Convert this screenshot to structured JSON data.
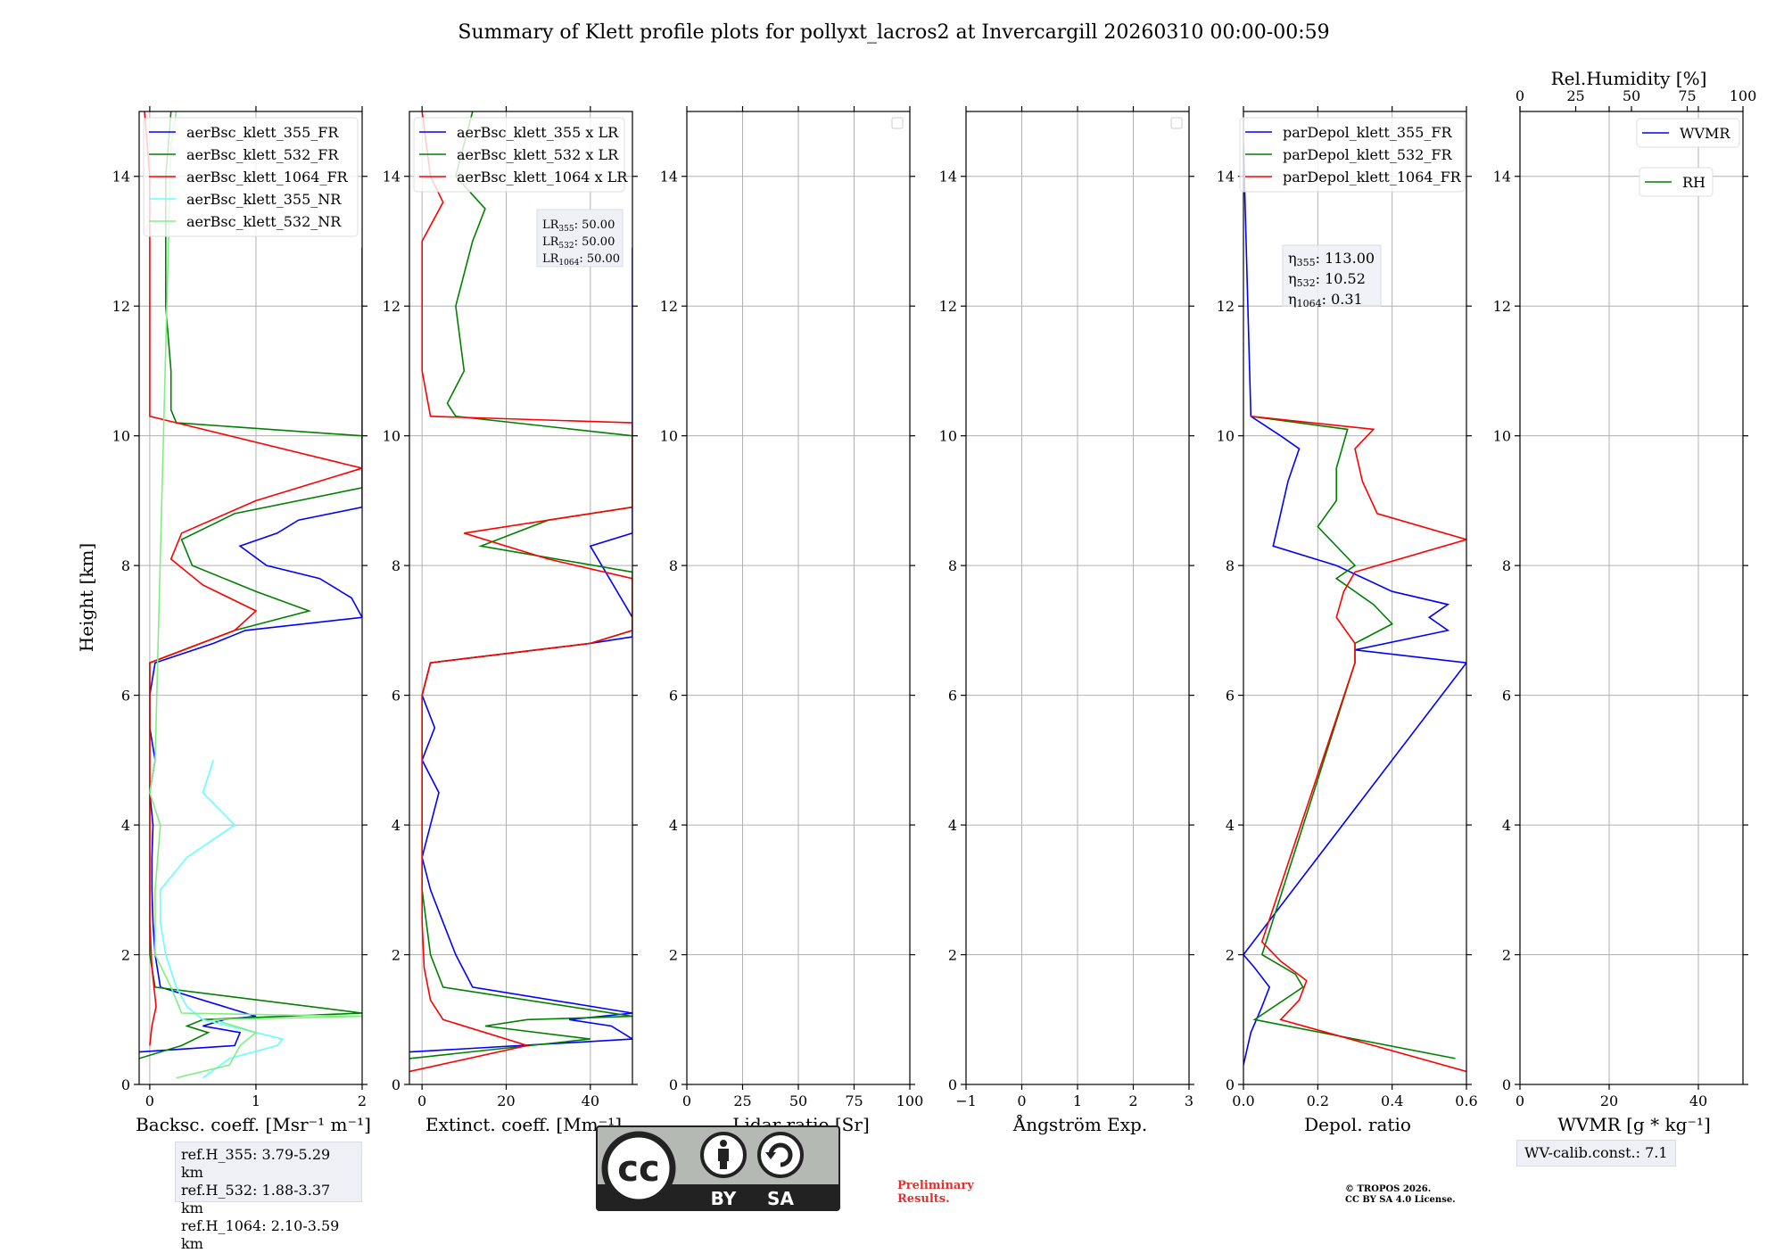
{
  "title": "Summary of Klett profile plots for pollyxt_lacros2 at Invercargill 20260310 00:00-00:59",
  "ylabel": "Height [km]",
  "colors": {
    "blue": "#0000ff",
    "green": "#008000",
    "red": "#ff0000",
    "cyan": "#66ffff",
    "lightgreen": "#80ee80"
  },
  "chart_data": [
    {
      "id": "bsc",
      "type": "line",
      "xlabel": "Backsc. coeff. [Msr⁻¹ m⁻¹]",
      "xlim": [
        -0.1,
        2
      ],
      "ylim": [
        0,
        15
      ],
      "xticks": [
        "0",
        "1",
        "2"
      ],
      "xtick_values": [
        0,
        1,
        2
      ],
      "yticks": [
        "0",
        "2",
        "4",
        "6",
        "8",
        "10",
        "12",
        "14"
      ],
      "legend": [
        "aerBsc_klett_355_FR",
        "aerBsc_klett_532_FR",
        "aerBsc_klett_1064_FR",
        "aerBsc_klett_355_NR",
        "aerBsc_klett_532_NR"
      ],
      "series": [
        {
          "name": "aerBsc_klett_355_FR",
          "color": "blue",
          "y": [
            0.5,
            0.6,
            0.8,
            0.9,
            1.0,
            1.05,
            1.1,
            1.5,
            2.0,
            2.5,
            3.0,
            3.5,
            4.0,
            4.5,
            5.0,
            5.5,
            6.0,
            6.5,
            6.8,
            7.0,
            7.2,
            7.5,
            7.8,
            8.0,
            8.3,
            8.5,
            8.7,
            8.9,
            12.9
          ],
          "x": [
            -0.1,
            0.8,
            0.85,
            0.5,
            0.7,
            1.0,
            0.9,
            0.1,
            0.05,
            0.03,
            0.02,
            0.02,
            0.03,
            0.0,
            0.05,
            0.0,
            0.0,
            0.05,
            0.6,
            0.9,
            2.0,
            1.9,
            1.6,
            1.1,
            0.85,
            1.2,
            1.4,
            2.0,
            2.0
          ]
        },
        {
          "name": "aerBsc_klett_532_FR",
          "color": "green",
          "y": [
            0.4,
            0.6,
            0.8,
            0.9,
            1.0,
            1.1,
            1.5,
            2.0,
            3.0,
            4.0,
            5.0,
            6.0,
            6.5,
            7.0,
            7.3,
            7.6,
            8.0,
            8.4,
            8.8,
            9.2,
            10.0,
            10.2,
            10.4,
            11.0,
            12.0,
            13.0,
            14.0,
            15.0
          ],
          "x": [
            -0.1,
            0.3,
            0.55,
            0.35,
            0.5,
            2.0,
            0.05,
            0.0,
            0.0,
            0.0,
            0.0,
            0.0,
            0.0,
            0.8,
            1.5,
            1.0,
            0.4,
            0.3,
            0.8,
            2.0,
            2.0,
            0.25,
            0.2,
            0.2,
            0.15,
            0.15,
            0.15,
            0.2
          ]
        },
        {
          "name": "aerBsc_klett_1064_FR",
          "color": "red",
          "y": [
            0.6,
            0.9,
            1.2,
            1.8,
            2.5,
            3.5,
            5.0,
            6.5,
            7.0,
            7.3,
            7.7,
            8.1,
            8.5,
            9.0,
            9.5,
            10.3,
            11.0,
            12.0,
            13.0,
            14.0,
            15.0
          ],
          "x": [
            0.0,
            0.02,
            0.06,
            0.02,
            0.0,
            0.0,
            0.0,
            0.0,
            0.8,
            1.0,
            0.5,
            0.2,
            0.3,
            1.0,
            2.0,
            0.0,
            0.0,
            0.0,
            0.0,
            0.0,
            -0.05
          ]
        },
        {
          "name": "aerBsc_klett_355_NR",
          "color": "cyan",
          "y": [
            0.1,
            0.4,
            0.6,
            0.7,
            0.8,
            1.0,
            1.2,
            1.5,
            2.0,
            2.5,
            3.0,
            3.5,
            4.0,
            4.5,
            5.0
          ],
          "x": [
            0.5,
            0.75,
            1.2,
            1.25,
            1.0,
            0.5,
            0.35,
            0.25,
            0.15,
            0.1,
            0.1,
            0.35,
            0.8,
            0.5,
            0.6
          ]
        },
        {
          "name": "aerBsc_klett_532_NR",
          "color": "lightgreen",
          "y": [
            0.1,
            0.3,
            0.6,
            0.8,
            1.0,
            1.05,
            1.1,
            1.5,
            2.0,
            3.0,
            4.0,
            4.5,
            5.0,
            14.5,
            15.0
          ],
          "x": [
            0.25,
            0.75,
            0.85,
            1.0,
            0.6,
            2.0,
            0.3,
            0.2,
            0.05,
            0.05,
            0.1,
            0.0,
            0.05,
            0.2,
            0.25
          ]
        }
      ]
    },
    {
      "id": "ext",
      "type": "line",
      "xlabel": "Extinct. coeff. [Mm⁻¹]",
      "xlim": [
        -3,
        50
      ],
      "ylim": [
        0,
        15
      ],
      "xticks": [
        "0",
        "20",
        "40"
      ],
      "xtick_values": [
        0,
        20,
        40
      ],
      "yticks": [
        "0",
        "2",
        "4",
        "6",
        "8",
        "10",
        "12",
        "14"
      ],
      "legend": [
        "aerBsc_klett_355 x LR",
        "aerBsc_klett_532 x LR",
        "aerBsc_klett_1064 x LR"
      ],
      "annotation": [
        "LR355: 50.00",
        "LR532: 50.00",
        "LR1064: 50.00"
      ],
      "series": [
        {
          "name": "aerBsc_klett_355 x LR",
          "color": "blue",
          "y": [
            0.5,
            0.7,
            0.9,
            1.0,
            1.1,
            1.5,
            2.0,
            2.5,
            3.0,
            3.5,
            4.0,
            4.5,
            5.0,
            5.5,
            6.0,
            6.5,
            6.8,
            6.9,
            7.2,
            8.3,
            8.5,
            12.9
          ],
          "x": [
            -3,
            50,
            45,
            35,
            50,
            12,
            8,
            5,
            2,
            0,
            2,
            4,
            0,
            3,
            0,
            2,
            40,
            50,
            50,
            40,
            50,
            50
          ]
        },
        {
          "name": "aerBsc_klett_532 x LR",
          "color": "green",
          "y": [
            0.4,
            0.7,
            0.9,
            1.0,
            1.05,
            1.5,
            2.0,
            3.0,
            4.0,
            5.0,
            6.0,
            6.5,
            6.8,
            7.0,
            7.9,
            8.3,
            8.7,
            8.9,
            10.0,
            10.3,
            10.5,
            11.0,
            12.0,
            13.0,
            13.5,
            14.0,
            15.0
          ],
          "x": [
            -3,
            40,
            15,
            25,
            50,
            5,
            2,
            0,
            0,
            0,
            0,
            2,
            40,
            50,
            50,
            14,
            30,
            50,
            50,
            8,
            6,
            10,
            8,
            12,
            15,
            8,
            12
          ]
        },
        {
          "name": "aerBsc_klett_1064 x LR",
          "color": "red",
          "y": [
            0.2,
            0.6,
            0.8,
            1.0,
            1.3,
            1.8,
            2.5,
            4.0,
            6.0,
            6.5,
            6.8,
            7.0,
            7.8,
            8.1,
            8.5,
            8.9,
            10.2,
            10.3,
            11.0,
            12.0,
            13.0,
            13.6,
            14.0,
            15.0
          ],
          "x": [
            -3,
            25,
            15,
            5,
            2,
            0.5,
            0,
            0,
            0,
            2,
            40,
            50,
            50,
            30,
            10,
            50,
            50,
            2,
            0,
            0,
            0,
            5,
            2,
            0
          ]
        }
      ]
    },
    {
      "id": "lr",
      "type": "line",
      "xlabel": "Lidar ratio [Sr]",
      "xlim": [
        0,
        100
      ],
      "ylim": [
        0,
        15
      ],
      "xticks": [
        "0",
        "25",
        "50",
        "75",
        "100"
      ],
      "xtick_values": [
        0,
        25,
        50,
        75,
        100
      ],
      "yticks": [
        "0",
        "2",
        "4",
        "6",
        "8",
        "10",
        "12",
        "14"
      ],
      "legend": [],
      "series": []
    },
    {
      "id": "ang",
      "type": "line",
      "xlabel": "Ångström Exp.",
      "xlim": [
        -1,
        3
      ],
      "ylim": [
        0,
        15
      ],
      "xticks": [
        "−1",
        "0",
        "1",
        "2",
        "3"
      ],
      "xtick_values": [
        -1,
        0,
        1,
        2,
        3
      ],
      "yticks": [
        "0",
        "2",
        "4",
        "6",
        "8",
        "10",
        "12",
        "14"
      ],
      "legend": [],
      "series": []
    },
    {
      "id": "depol",
      "type": "line",
      "xlabel": "Depol. ratio",
      "xlim": [
        0,
        0.6
      ],
      "ylim": [
        0,
        15
      ],
      "xticks": [
        "0.0",
        "0.2",
        "0.4",
        "0.6"
      ],
      "xtick_values": [
        0,
        0.2,
        0.4,
        0.6
      ],
      "yticks": [
        "0",
        "2",
        "4",
        "6",
        "8",
        "10",
        "12",
        "14"
      ],
      "legend": [
        "parDepol_klett_355_FR",
        "parDepol_klett_532_FR",
        "parDepol_klett_1064_FR"
      ],
      "annotation": [
        "η355: 113.00",
        "η532: 10.52",
        "η1064: 0.31"
      ],
      "series": [
        {
          "name": "parDepol_klett_355_FR",
          "color": "blue",
          "y": [
            0.3,
            0.8,
            1.2,
            1.5,
            1.8,
            2.0,
            6.5,
            6.7,
            7.0,
            7.2,
            7.4,
            7.6,
            8.0,
            8.3,
            8.8,
            9.3,
            9.8,
            10.0,
            10.3,
            14.5
          ],
          "x": [
            0.0,
            0.02,
            0.05,
            0.07,
            0.03,
            0.0,
            0.6,
            0.3,
            0.55,
            0.5,
            0.55,
            0.4,
            0.25,
            0.08,
            0.1,
            0.12,
            0.15,
            0.1,
            0.02,
            0.0
          ]
        },
        {
          "name": "parDepol_klett_532_FR",
          "color": "green",
          "y": [
            0.4,
            1.0,
            1.5,
            1.7,
            2.0,
            6.5,
            6.8,
            7.1,
            7.4,
            7.8,
            8.0,
            8.6,
            9.0,
            9.5,
            10.1,
            10.3
          ],
          "x": [
            0.57,
            0.03,
            0.16,
            0.14,
            0.05,
            0.3,
            0.3,
            0.4,
            0.35,
            0.25,
            0.3,
            0.2,
            0.25,
            0.25,
            0.28,
            0.02
          ]
        },
        {
          "name": "parDepol_klett_1064_FR",
          "color": "red",
          "y": [
            0.2,
            1.0,
            1.3,
            1.6,
            1.9,
            2.2,
            6.5,
            6.8,
            7.2,
            7.6,
            7.9,
            8.4,
            8.8,
            9.3,
            9.8,
            10.1,
            10.3
          ],
          "x": [
            0.6,
            0.1,
            0.15,
            0.17,
            0.1,
            0.05,
            0.3,
            0.3,
            0.25,
            0.27,
            0.3,
            0.6,
            0.36,
            0.32,
            0.3,
            0.35,
            0.02
          ]
        }
      ]
    },
    {
      "id": "wv",
      "type": "line",
      "xlabel": "WVMR [g * kg⁻¹]",
      "top_xlabel": "Rel.Humidity [%]",
      "xlim": [
        0,
        50
      ],
      "ylim": [
        0,
        15
      ],
      "xticks": [
        "0",
        "20",
        "40"
      ],
      "xtick_values": [
        0,
        20,
        40
      ],
      "top_xticks": [
        "0",
        "25",
        "50",
        "75",
        "100"
      ],
      "top_xtick_values": [
        0,
        25,
        50,
        75,
        100
      ],
      "yticks": [
        "0",
        "2",
        "4",
        "6",
        "8",
        "10",
        "12",
        "14"
      ],
      "legend": [
        "WVMR",
        "RH"
      ],
      "series": []
    }
  ],
  "ref_heights": [
    "ref.H_355: 3.79-5.29 km",
    "ref.H_532: 1.88-3.37 km",
    "ref.H_1064: 2.10-3.59 km"
  ],
  "wv_calib": "WV-calib.const.: 7.1",
  "preliminary": [
    "Preliminary",
    "Results."
  ],
  "copyright": [
    "© TROPOS 2026.",
    "CC BY SA 4.0 License."
  ],
  "cc_logo": {
    "text": "cc",
    "by": "BY",
    "sa": "SA"
  }
}
